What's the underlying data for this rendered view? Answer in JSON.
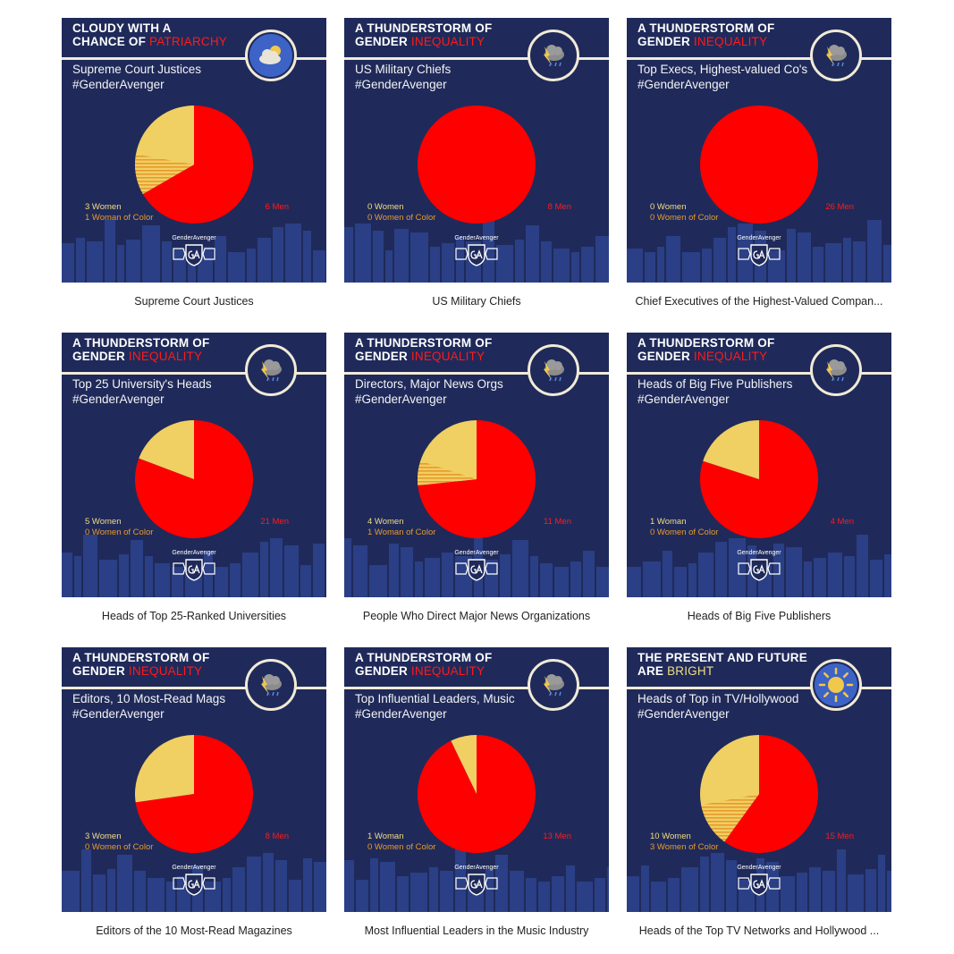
{
  "colors": {
    "background": "#1f2a5a",
    "men": "#ff0000",
    "women": "#f0cf63",
    "women_of_color_stripe": "#e89a2b",
    "header_accent_red": "#ff1a1a",
    "header_accent_yellow": "#f2dd82",
    "skyline": "#2a3f85"
  },
  "logo_text": "GenderAvenger",
  "tiles": [
    {
      "headline": [
        "CLOUDY WITH A",
        "CHANCE OF "
      ],
      "headline_highlight": "PATRIARCHY",
      "highlight_color": "#ff1a1a",
      "weather_icon": "cloudy-icon",
      "subtitle": [
        "Supreme Court Justices",
        "#GenderAvenger"
      ],
      "women_label": "3 Women",
      "woc_label": "1 Woman of Color",
      "men_label": "6 Men",
      "caption": "Supreme Court Justices"
    },
    {
      "headline": [
        "A THUNDERSTORM OF",
        "GENDER "
      ],
      "headline_highlight": "INEQUALITY",
      "highlight_color": "#ff1a1a",
      "weather_icon": "thunderstorm-icon",
      "subtitle": [
        "US Military Chiefs",
        "#GenderAvenger"
      ],
      "women_label": "0 Women",
      "woc_label": "0 Women of Color",
      "men_label": "8 Men",
      "caption": "US Military Chiefs"
    },
    {
      "headline": [
        "A THUNDERSTORM OF",
        "GENDER "
      ],
      "headline_highlight": "INEQUALITY",
      "highlight_color": "#ff1a1a",
      "weather_icon": "thunderstorm-icon",
      "subtitle": [
        "Top Execs, Highest-valued Co's",
        "#GenderAvenger"
      ],
      "women_label": "0 Women",
      "woc_label": "0 Women of Color",
      "men_label": "26 Men",
      "caption": "Chief Executives of the Highest-Valued Compan..."
    },
    {
      "headline": [
        "A THUNDERSTORM OF",
        "GENDER "
      ],
      "headline_highlight": "INEQUALITY",
      "highlight_color": "#ff1a1a",
      "weather_icon": "thunderstorm-icon",
      "subtitle": [
        "Top 25 University's Heads",
        "#GenderAvenger"
      ],
      "women_label": "5 Women",
      "woc_label": "0 Women of Color",
      "men_label": "21 Men",
      "caption": "Heads of Top 25-Ranked Universities"
    },
    {
      "headline": [
        "A THUNDERSTORM OF",
        "GENDER "
      ],
      "headline_highlight": "INEQUALITY",
      "highlight_color": "#ff1a1a",
      "weather_icon": "thunderstorm-icon",
      "subtitle": [
        "Directors, Major News Orgs",
        "#GenderAvenger"
      ],
      "women_label": "4 Women",
      "woc_label": "1 Woman of Color",
      "men_label": "11 Men",
      "caption": "People Who Direct Major News Organizations"
    },
    {
      "headline": [
        "A THUNDERSTORM OF",
        "GENDER "
      ],
      "headline_highlight": "INEQUALITY",
      "highlight_color": "#ff1a1a",
      "weather_icon": "thunderstorm-icon",
      "subtitle": [
        "Heads of Big Five Publishers",
        "#GenderAvenger"
      ],
      "women_label": "1 Woman",
      "woc_label": "0 Women of Color",
      "men_label": "4 Men",
      "caption": "Heads of Big Five Publishers"
    },
    {
      "headline": [
        "A THUNDERSTORM OF",
        "GENDER "
      ],
      "headline_highlight": "INEQUALITY",
      "highlight_color": "#ff1a1a",
      "weather_icon": "thunderstorm-icon",
      "subtitle": [
        "Editors, 10 Most-Read Mags",
        "#GenderAvenger"
      ],
      "women_label": "3 Women",
      "woc_label": "0 Women of Color",
      "men_label": "8 Men",
      "caption": "Editors of the 10 Most-Read Magazines"
    },
    {
      "headline": [
        "A THUNDERSTORM OF",
        "GENDER "
      ],
      "headline_highlight": "INEQUALITY",
      "highlight_color": "#ff1a1a",
      "weather_icon": "thunderstorm-icon",
      "subtitle": [
        "Top Influential Leaders, Music",
        "#GenderAvenger"
      ],
      "women_label": "1 Woman",
      "woc_label": "0 Women of Color",
      "men_label": "13 Men",
      "caption": "Most Influential Leaders in the Music Industry"
    },
    {
      "headline": [
        "THE PRESENT AND FUTURE",
        "ARE "
      ],
      "headline_highlight": "BRIGHT",
      "highlight_color": "#f2dd82",
      "weather_icon": "sun-icon",
      "subtitle": [
        "Heads of Top in TV/Hollywood",
        "#GenderAvenger"
      ],
      "women_label": "10 Women",
      "woc_label": "3 Women of Color",
      "men_label": "15 Men",
      "caption": "Heads of the Top TV Networks and Hollywood ..."
    }
  ],
  "chart_data": [
    {
      "type": "pie",
      "categories": [
        "Women",
        "Men"
      ],
      "values": [
        3,
        6
      ],
      "women_of_color": 1
    },
    {
      "type": "pie",
      "categories": [
        "Women",
        "Men"
      ],
      "values": [
        0,
        8
      ],
      "women_of_color": 0
    },
    {
      "type": "pie",
      "categories": [
        "Women",
        "Men"
      ],
      "values": [
        0,
        26
      ],
      "women_of_color": 0
    },
    {
      "type": "pie",
      "categories": [
        "Women",
        "Men"
      ],
      "values": [
        5,
        21
      ],
      "women_of_color": 0
    },
    {
      "type": "pie",
      "categories": [
        "Women",
        "Men"
      ],
      "values": [
        4,
        11
      ],
      "women_of_color": 1
    },
    {
      "type": "pie",
      "categories": [
        "Women",
        "Men"
      ],
      "values": [
        1,
        4
      ],
      "women_of_color": 0
    },
    {
      "type": "pie",
      "categories": [
        "Women",
        "Men"
      ],
      "values": [
        3,
        8
      ],
      "women_of_color": 0
    },
    {
      "type": "pie",
      "categories": [
        "Women",
        "Men"
      ],
      "values": [
        1,
        13
      ],
      "women_of_color": 0
    },
    {
      "type": "pie",
      "categories": [
        "Women",
        "Men"
      ],
      "values": [
        10,
        15
      ],
      "women_of_color": 3
    }
  ]
}
